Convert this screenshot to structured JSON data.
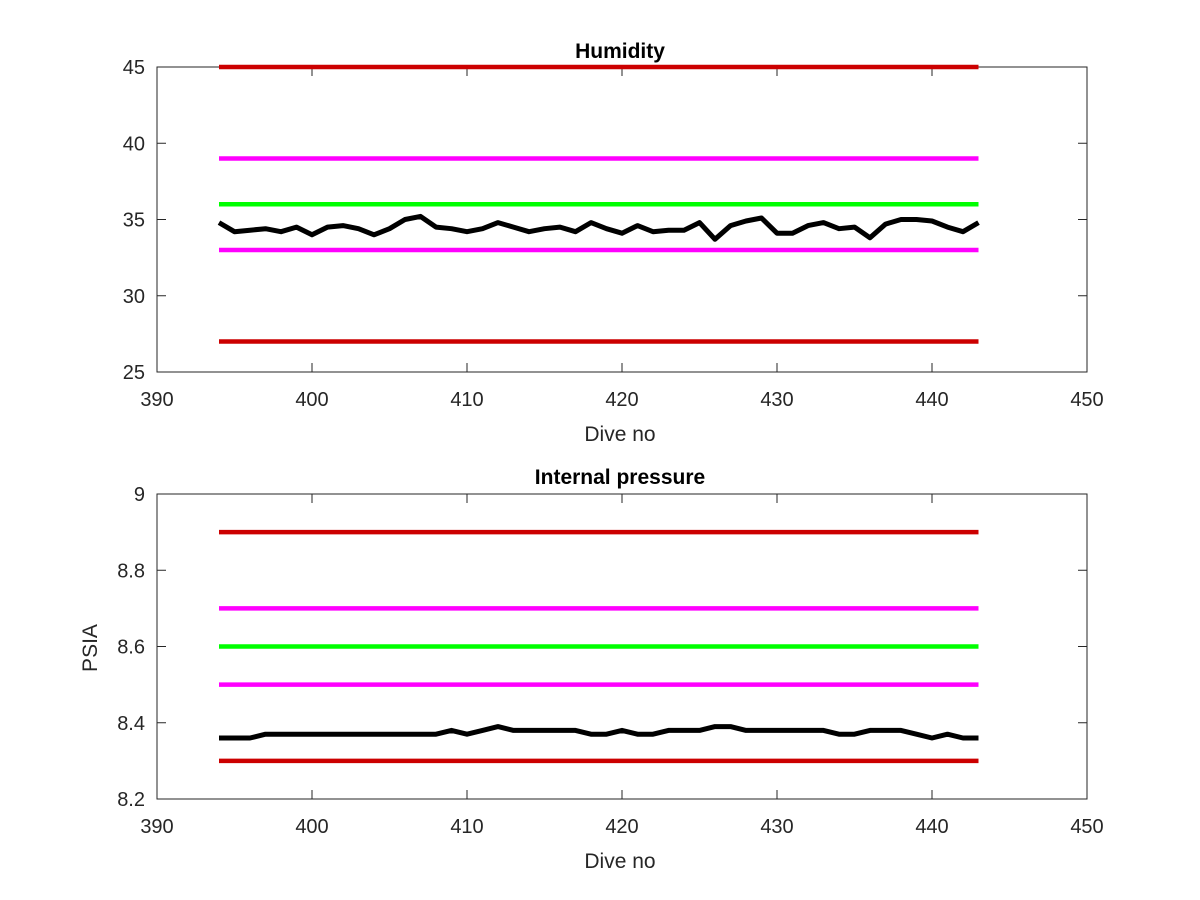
{
  "chart_data": [
    {
      "type": "line",
      "title": "Humidity",
      "xlabel": "Dive no",
      "ylabel": "",
      "xlim": [
        390,
        450
      ],
      "ylim": [
        25,
        45
      ],
      "xticks": [
        "390",
        "400",
        "410",
        "420",
        "430",
        "440",
        "450"
      ],
      "yticks": [
        "25",
        "30",
        "35",
        "40",
        "45"
      ],
      "grid": false,
      "legend": "none",
      "series": [
        {
          "values_x": [
            394,
            443
          ],
          "values_y": [
            45,
            45
          ],
          "color": "#cc0000"
        },
        {
          "values_x": [
            394,
            443
          ],
          "values_y": [
            39,
            39
          ],
          "color": "#ff00ff"
        },
        {
          "values_x": [
            394,
            443
          ],
          "values_y": [
            36,
            36
          ],
          "color": "#00ff00"
        },
        {
          "values_x": [
            394,
            443
          ],
          "values_y": [
            33,
            33
          ],
          "color": "#ff00ff"
        },
        {
          "values_x": [
            394,
            443
          ],
          "values_y": [
            27,
            27
          ],
          "color": "#cc0000"
        },
        {
          "color": "#000000",
          "values_x": [
            394,
            395,
            396,
            397,
            398,
            399,
            400,
            401,
            402,
            403,
            404,
            405,
            406,
            407,
            408,
            409,
            410,
            411,
            412,
            413,
            414,
            415,
            416,
            417,
            418,
            419,
            420,
            421,
            422,
            423,
            424,
            425,
            426,
            427,
            428,
            429,
            430,
            431,
            432,
            433,
            434,
            435,
            436,
            437,
            438,
            439,
            440,
            441,
            442,
            443
          ],
          "values_y": [
            34.8,
            34.2,
            34.3,
            34.4,
            34.2,
            34.5,
            34.0,
            34.5,
            34.6,
            34.4,
            34.0,
            34.4,
            35.0,
            35.2,
            34.5,
            34.4,
            34.2,
            34.4,
            34.8,
            34.5,
            34.2,
            34.4,
            34.5,
            34.2,
            34.8,
            34.4,
            34.1,
            34.6,
            34.2,
            34.3,
            34.3,
            34.8,
            33.7,
            34.6,
            34.9,
            35.1,
            34.1,
            34.1,
            34.6,
            34.8,
            34.4,
            34.5,
            33.8,
            34.7,
            35.0,
            35.0,
            34.9,
            34.5,
            34.2,
            34.8
          ]
        }
      ]
    },
    {
      "type": "line",
      "title": "Internal pressure",
      "xlabel": "Dive no",
      "ylabel": "PSIA",
      "xlim": [
        390,
        450
      ],
      "ylim": [
        8.2,
        9
      ],
      "xticks": [
        "390",
        "400",
        "410",
        "420",
        "430",
        "440",
        "450"
      ],
      "yticks": [
        "8.2",
        "8.4",
        "8.6",
        "8.8",
        "9"
      ],
      "grid": false,
      "legend": "none",
      "series": [
        {
          "values_x": [
            394,
            443
          ],
          "values_y": [
            8.9,
            8.9
          ],
          "color": "#cc0000"
        },
        {
          "values_x": [
            394,
            443
          ],
          "values_y": [
            8.7,
            8.7
          ],
          "color": "#ff00ff"
        },
        {
          "values_x": [
            394,
            443
          ],
          "values_y": [
            8.6,
            8.6
          ],
          "color": "#00ff00"
        },
        {
          "values_x": [
            394,
            443
          ],
          "values_y": [
            8.5,
            8.5
          ],
          "color": "#ff00ff"
        },
        {
          "values_x": [
            394,
            443
          ],
          "values_y": [
            8.3,
            8.3
          ],
          "color": "#cc0000"
        },
        {
          "color": "#000000",
          "values_x": [
            394,
            395,
            396,
            397,
            398,
            399,
            400,
            401,
            402,
            403,
            404,
            405,
            406,
            407,
            408,
            409,
            410,
            411,
            412,
            413,
            414,
            415,
            416,
            417,
            418,
            419,
            420,
            421,
            422,
            423,
            424,
            425,
            426,
            427,
            428,
            429,
            430,
            431,
            432,
            433,
            434,
            435,
            436,
            437,
            438,
            439,
            440,
            441,
            442,
            443
          ],
          "values_y": [
            8.36,
            8.36,
            8.36,
            8.37,
            8.37,
            8.37,
            8.37,
            8.37,
            8.37,
            8.37,
            8.37,
            8.37,
            8.37,
            8.37,
            8.37,
            8.38,
            8.37,
            8.38,
            8.39,
            8.38,
            8.38,
            8.38,
            8.38,
            8.38,
            8.37,
            8.37,
            8.38,
            8.37,
            8.37,
            8.38,
            8.38,
            8.38,
            8.39,
            8.39,
            8.38,
            8.38,
            8.38,
            8.38,
            8.38,
            8.38,
            8.37,
            8.37,
            8.38,
            8.38,
            8.38,
            8.37,
            8.36,
            8.37,
            8.36,
            8.36
          ]
        }
      ]
    }
  ]
}
